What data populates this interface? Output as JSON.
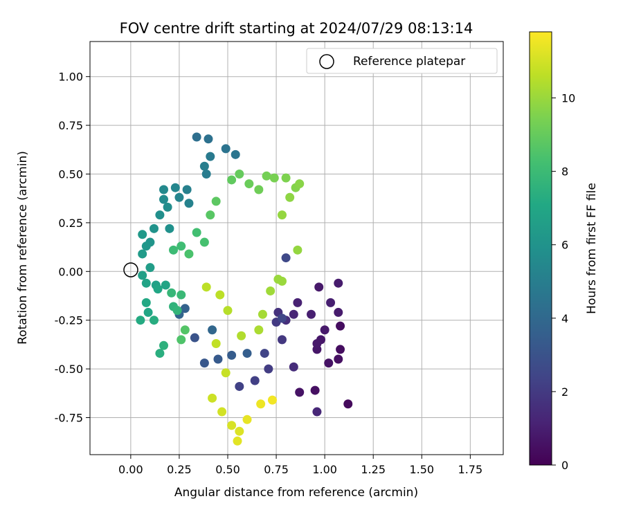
{
  "chart_data": {
    "type": "scatter",
    "title": "FOV centre drift starting at 2024/07/29 08:13:14",
    "xlabel": "Angular distance from reference (arcmin)",
    "ylabel": "Rotation from reference (arcmin)",
    "xlim": [
      -0.21,
      1.92
    ],
    "ylim": [
      -0.94,
      1.18
    ],
    "xticks": [
      "0.00",
      "0.25",
      "0.50",
      "0.75",
      "1.00",
      "1.25",
      "1.50",
      "1.75"
    ],
    "yticks": [
      "-0.75",
      "-0.50",
      "-0.25",
      "0.00",
      "0.25",
      "0.50",
      "0.75",
      "1.00"
    ],
    "grid": true,
    "legend": {
      "placement": "top-right",
      "entries": [
        "Reference platepar"
      ]
    },
    "reference_point": {
      "x": 0.0,
      "y": 0.0
    },
    "colorbar": {
      "label": "Hours from first FF file",
      "min": 0,
      "max": 11.8,
      "ticks": [
        "0",
        "2",
        "4",
        "6",
        "8",
        "10"
      ],
      "colormap": "viridis"
    },
    "points_note_hours_as_third_value": true,
    "points": [
      [
        1.12,
        -0.68,
        0.3
      ],
      [
        1.08,
        -0.4,
        0.4
      ],
      [
        1.08,
        -0.28,
        0.4
      ],
      [
        1.07,
        -0.45,
        0.5
      ],
      [
        1.02,
        -0.47,
        0.6
      ],
      [
        0.95,
        -0.61,
        0.5
      ],
      [
        0.87,
        -0.62,
        0.6
      ],
      [
        0.96,
        -0.4,
        0.7
      ],
      [
        0.98,
        -0.35,
        0.7
      ],
      [
        1.0,
        -0.3,
        0.8
      ],
      [
        0.96,
        -0.37,
        0.8
      ],
      [
        0.97,
        -0.08,
        0.8
      ],
      [
        1.07,
        -0.06,
        0.9
      ],
      [
        1.07,
        -0.21,
        0.9
      ],
      [
        1.03,
        -0.16,
        1.0
      ],
      [
        0.93,
        -0.22,
        1.0
      ],
      [
        0.86,
        -0.16,
        1.1
      ],
      [
        0.84,
        -0.22,
        1.2
      ],
      [
        0.96,
        -0.72,
        1.3
      ],
      [
        0.84,
        -0.49,
        1.5
      ],
      [
        0.8,
        -0.25,
        1.6
      ],
      [
        0.76,
        -0.21,
        1.7
      ],
      [
        0.78,
        -0.35,
        1.9
      ],
      [
        0.75,
        -0.26,
        2.0
      ],
      [
        0.71,
        -0.5,
        2.1
      ],
      [
        0.64,
        -0.56,
        2.2
      ],
      [
        0.56,
        -0.59,
        2.3
      ],
      [
        0.69,
        -0.42,
        2.4
      ],
      [
        0.78,
        -0.24,
        2.5
      ],
      [
        0.8,
        0.07,
        2.6
      ],
      [
        0.33,
        -0.34,
        3.0
      ],
      [
        0.38,
        -0.47,
        3.2
      ],
      [
        0.45,
        -0.45,
        3.3
      ],
      [
        0.52,
        -0.43,
        3.4
      ],
      [
        0.6,
        -0.42,
        3.5
      ],
      [
        0.28,
        -0.19,
        3.7
      ],
      [
        0.25,
        -0.22,
        3.8
      ],
      [
        0.42,
        -0.3,
        3.9
      ],
      [
        0.34,
        0.69,
        4.3
      ],
      [
        0.4,
        0.68,
        4.4
      ],
      [
        0.49,
        0.63,
        4.5
      ],
      [
        0.54,
        0.6,
        4.6
      ],
      [
        0.41,
        0.59,
        4.8
      ],
      [
        0.39,
        0.5,
        4.9
      ],
      [
        0.38,
        0.54,
        5.0
      ],
      [
        0.29,
        0.42,
        5.1
      ],
      [
        0.3,
        0.35,
        5.2
      ],
      [
        0.25,
        0.38,
        5.3
      ],
      [
        0.23,
        0.43,
        5.4
      ],
      [
        0.17,
        0.42,
        5.5
      ],
      [
        0.17,
        0.37,
        5.6
      ],
      [
        0.19,
        0.33,
        5.7
      ],
      [
        0.15,
        0.29,
        5.8
      ],
      [
        0.2,
        0.22,
        5.9
      ],
      [
        0.12,
        0.22,
        6.0
      ],
      [
        0.1,
        0.15,
        6.1
      ],
      [
        0.08,
        0.13,
        6.2
      ],
      [
        0.06,
        0.19,
        6.3
      ],
      [
        0.06,
        0.09,
        6.4
      ],
      [
        0.1,
        0.02,
        6.5
      ],
      [
        0.06,
        -0.02,
        6.6
      ],
      [
        0.13,
        -0.07,
        6.7
      ],
      [
        0.08,
        -0.06,
        6.8
      ],
      [
        0.18,
        -0.07,
        6.9
      ],
      [
        0.14,
        -0.09,
        7.0
      ],
      [
        0.09,
        -0.21,
        7.0
      ],
      [
        0.08,
        -0.16,
        7.1
      ],
      [
        0.05,
        -0.25,
        7.2
      ],
      [
        0.12,
        -0.25,
        7.3
      ],
      [
        0.15,
        -0.42,
        7.4
      ],
      [
        0.17,
        -0.38,
        7.5
      ],
      [
        0.22,
        -0.18,
        7.6
      ],
      [
        0.24,
        -0.2,
        7.7
      ],
      [
        0.21,
        -0.11,
        7.8
      ],
      [
        0.26,
        -0.12,
        7.9
      ],
      [
        0.22,
        0.11,
        8.0
      ],
      [
        0.26,
        0.13,
        8.1
      ],
      [
        0.34,
        0.2,
        8.2
      ],
      [
        0.38,
        0.15,
        8.3
      ],
      [
        0.3,
        0.09,
        8.4
      ],
      [
        0.26,
        -0.35,
        8.5
      ],
      [
        0.28,
        -0.3,
        8.6
      ],
      [
        0.41,
        0.29,
        8.7
      ],
      [
        0.44,
        0.36,
        8.8
      ],
      [
        0.52,
        0.47,
        8.9
      ],
      [
        0.56,
        0.5,
        9.0
      ],
      [
        0.61,
        0.45,
        9.1
      ],
      [
        0.66,
        0.42,
        9.2
      ],
      [
        0.7,
        0.49,
        9.3
      ],
      [
        0.74,
        0.48,
        9.4
      ],
      [
        0.8,
        0.48,
        9.5
      ],
      [
        0.85,
        0.43,
        9.6
      ],
      [
        0.87,
        0.45,
        9.7
      ],
      [
        0.82,
        0.38,
        9.8
      ],
      [
        0.78,
        0.29,
        9.9
      ],
      [
        0.86,
        0.11,
        9.9
      ],
      [
        0.76,
        -0.04,
        10.0
      ],
      [
        0.78,
        -0.05,
        10.0
      ],
      [
        0.72,
        -0.1,
        10.1
      ],
      [
        0.68,
        -0.22,
        10.2
      ],
      [
        0.66,
        -0.3,
        10.3
      ],
      [
        0.57,
        -0.33,
        10.4
      ],
      [
        0.5,
        -0.2,
        10.5
      ],
      [
        0.46,
        -0.12,
        10.6
      ],
      [
        0.39,
        -0.08,
        10.6
      ],
      [
        0.44,
        -0.37,
        10.7
      ],
      [
        0.49,
        -0.52,
        10.8
      ],
      [
        0.42,
        -0.65,
        10.9
      ],
      [
        0.47,
        -0.72,
        11.0
      ],
      [
        0.52,
        -0.79,
        11.1
      ],
      [
        0.56,
        -0.82,
        11.2
      ],
      [
        0.55,
        -0.87,
        11.3
      ],
      [
        0.6,
        -0.76,
        11.4
      ],
      [
        0.67,
        -0.68,
        11.5
      ],
      [
        0.73,
        -0.66,
        11.6
      ]
    ]
  }
}
